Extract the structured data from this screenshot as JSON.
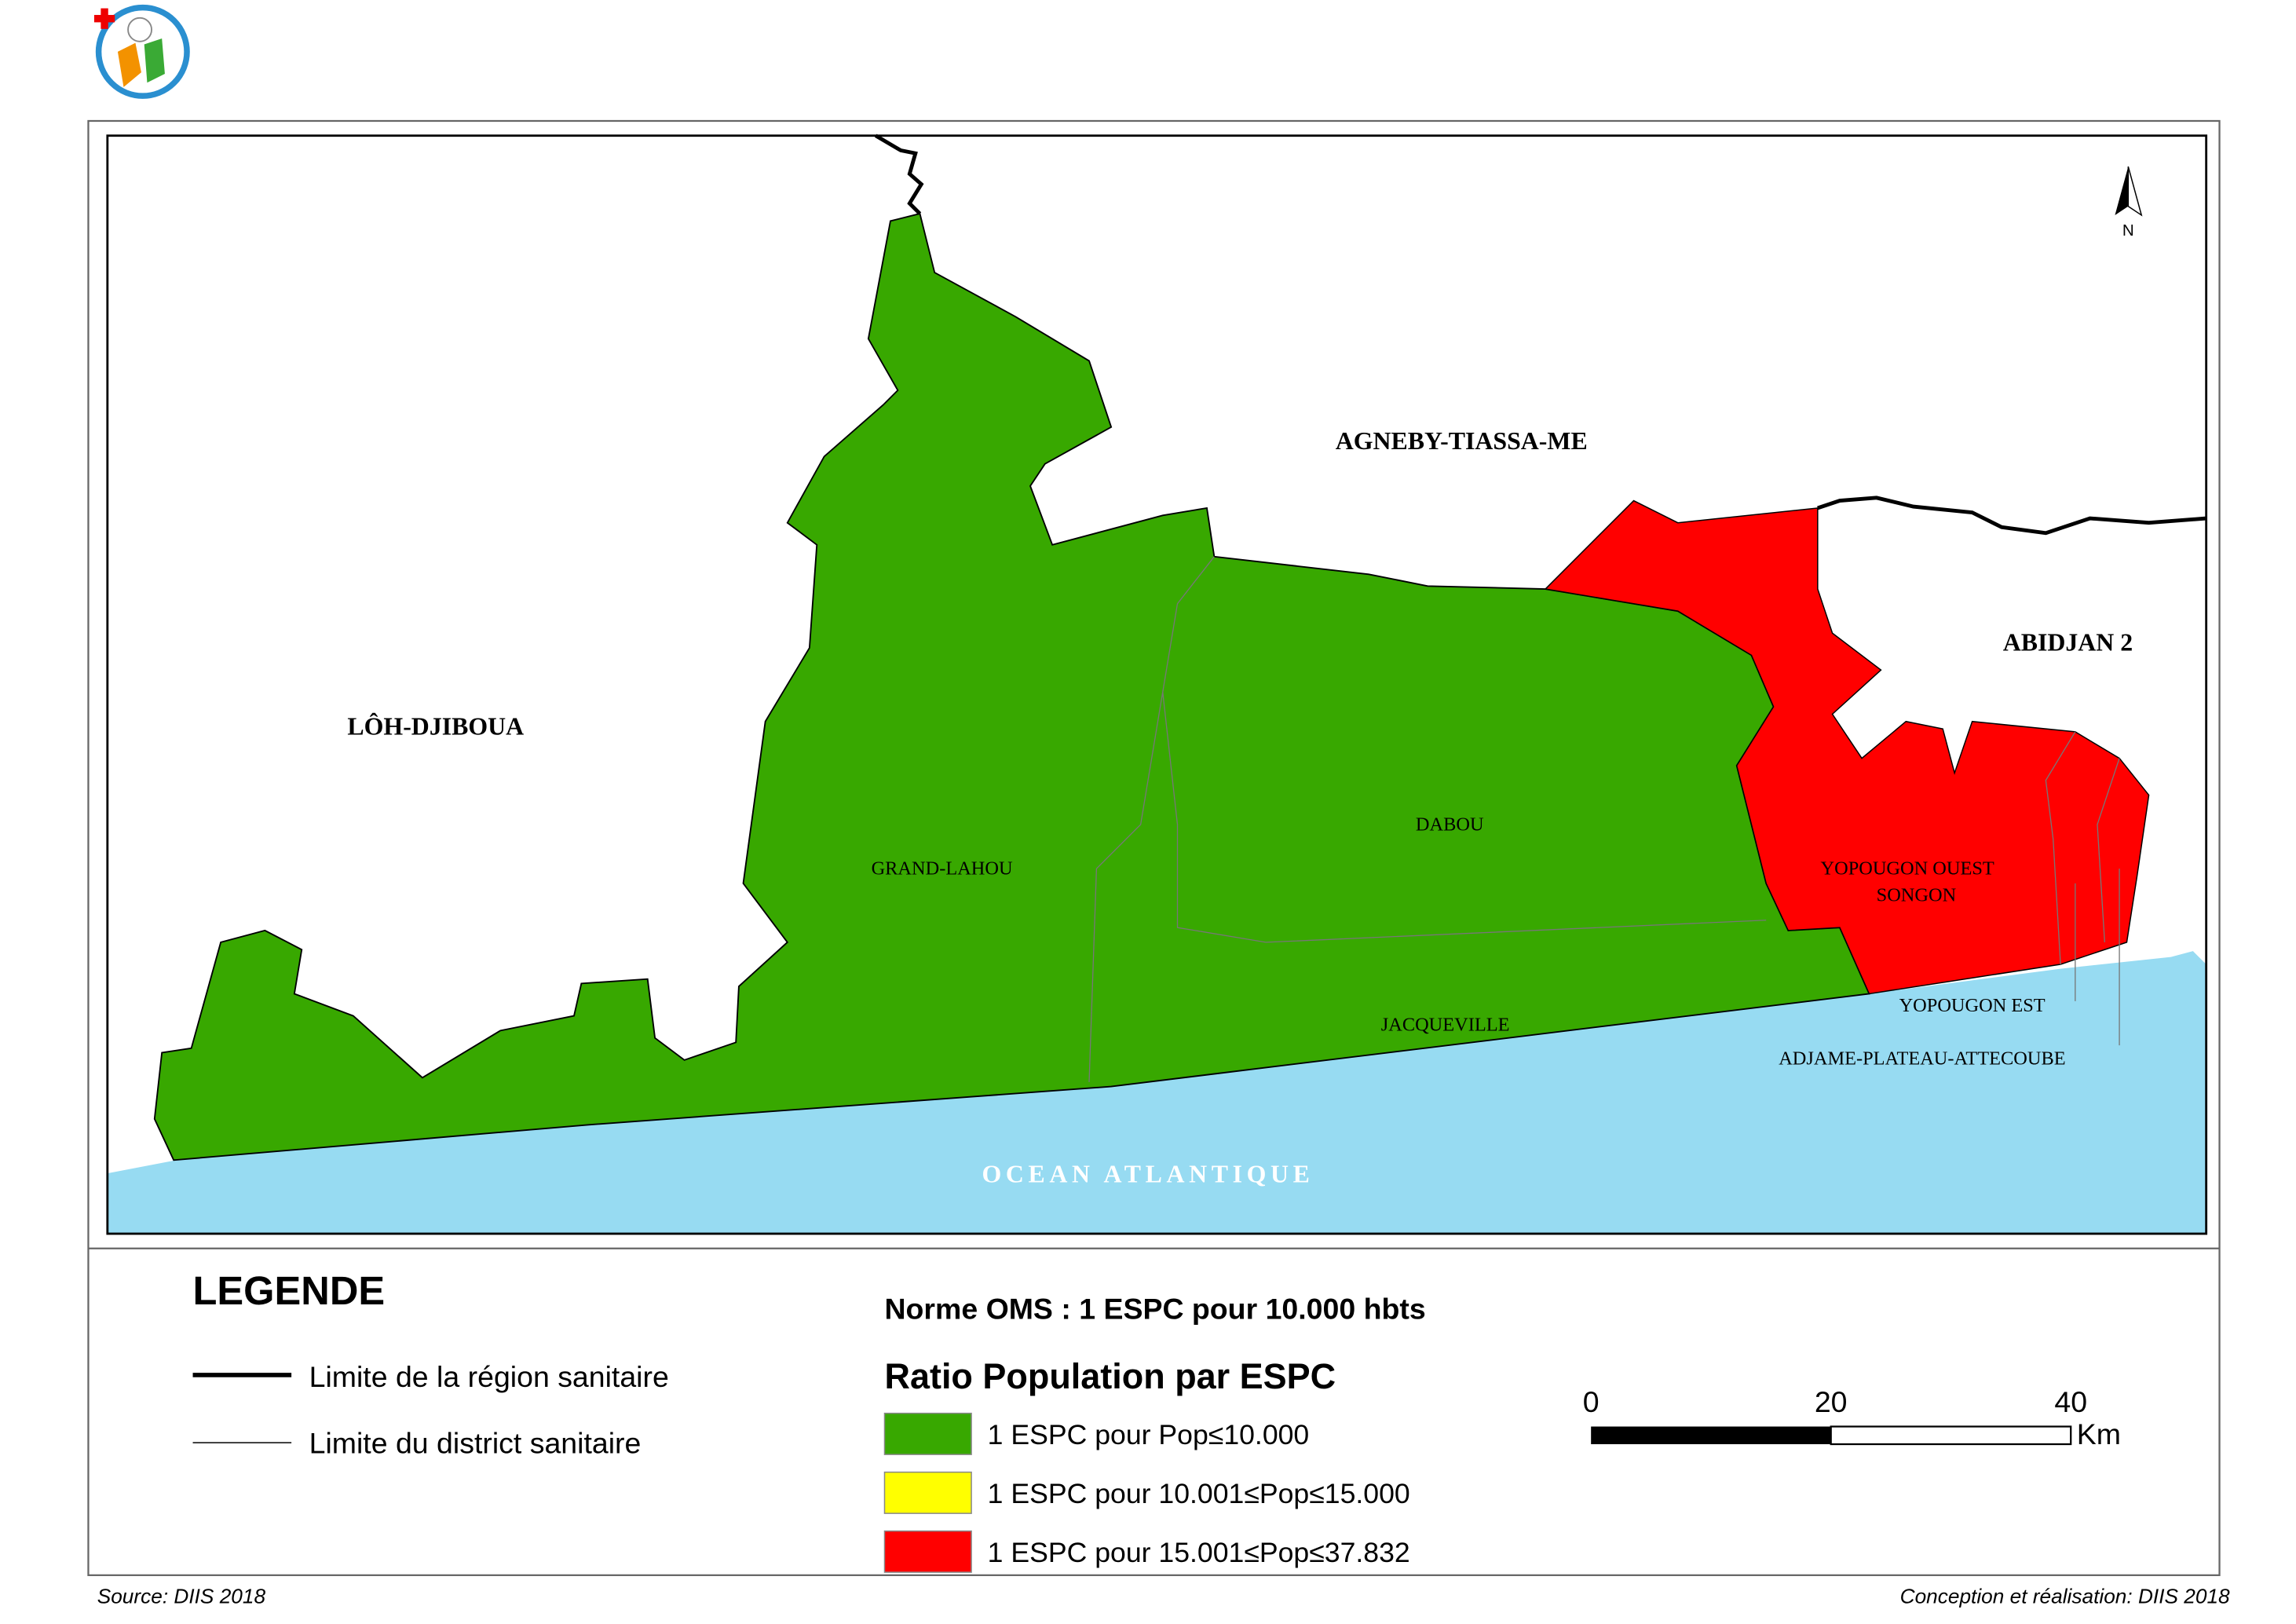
{
  "map": {
    "regions": {
      "north": "AGNEBY-TIASSA-ME",
      "west": "LÔH-DJIBOUA",
      "east": "ABIDJAN 2",
      "ocean": "OCEAN ATLANTIQUE"
    },
    "districts": {
      "grand_lahou": "GRAND-LAHOU",
      "dabou": "DABOU",
      "jacqueville": "JACQUEVILLE",
      "yopougon_ouest": [
        "YOPOUGON OUEST",
        "SONGON"
      ],
      "yopougon_est": "YOPOUGON EST",
      "adjame": "ADJAME-PLATEAU-ATTECOUBE"
    },
    "north_arrow": "N"
  },
  "legend": {
    "title": "LEGENDE",
    "lines": [
      "Limite de la région sanitaire",
      "Limite du district sanitaire"
    ],
    "norm": "Norme OMS : 1 ESPC pour 10.000 hbts",
    "ratio_title": "Ratio Population par ESPC",
    "classes": [
      {
        "label": "1 ESPC pour Pop≤10.000",
        "color": "#38a800"
      },
      {
        "label": "1 ESPC pour 10.001≤Pop≤15.000",
        "color": "#ffff00"
      },
      {
        "label": "1 ESPC pour 15.001≤Pop≤37.832",
        "color": "#ff0000"
      }
    ],
    "scale": [
      "0",
      "20",
      "40",
      "Km"
    ]
  },
  "footer": {
    "source": "Source: DIIS 2018",
    "credit": "Conception et réalisation: DIIS 2018"
  }
}
